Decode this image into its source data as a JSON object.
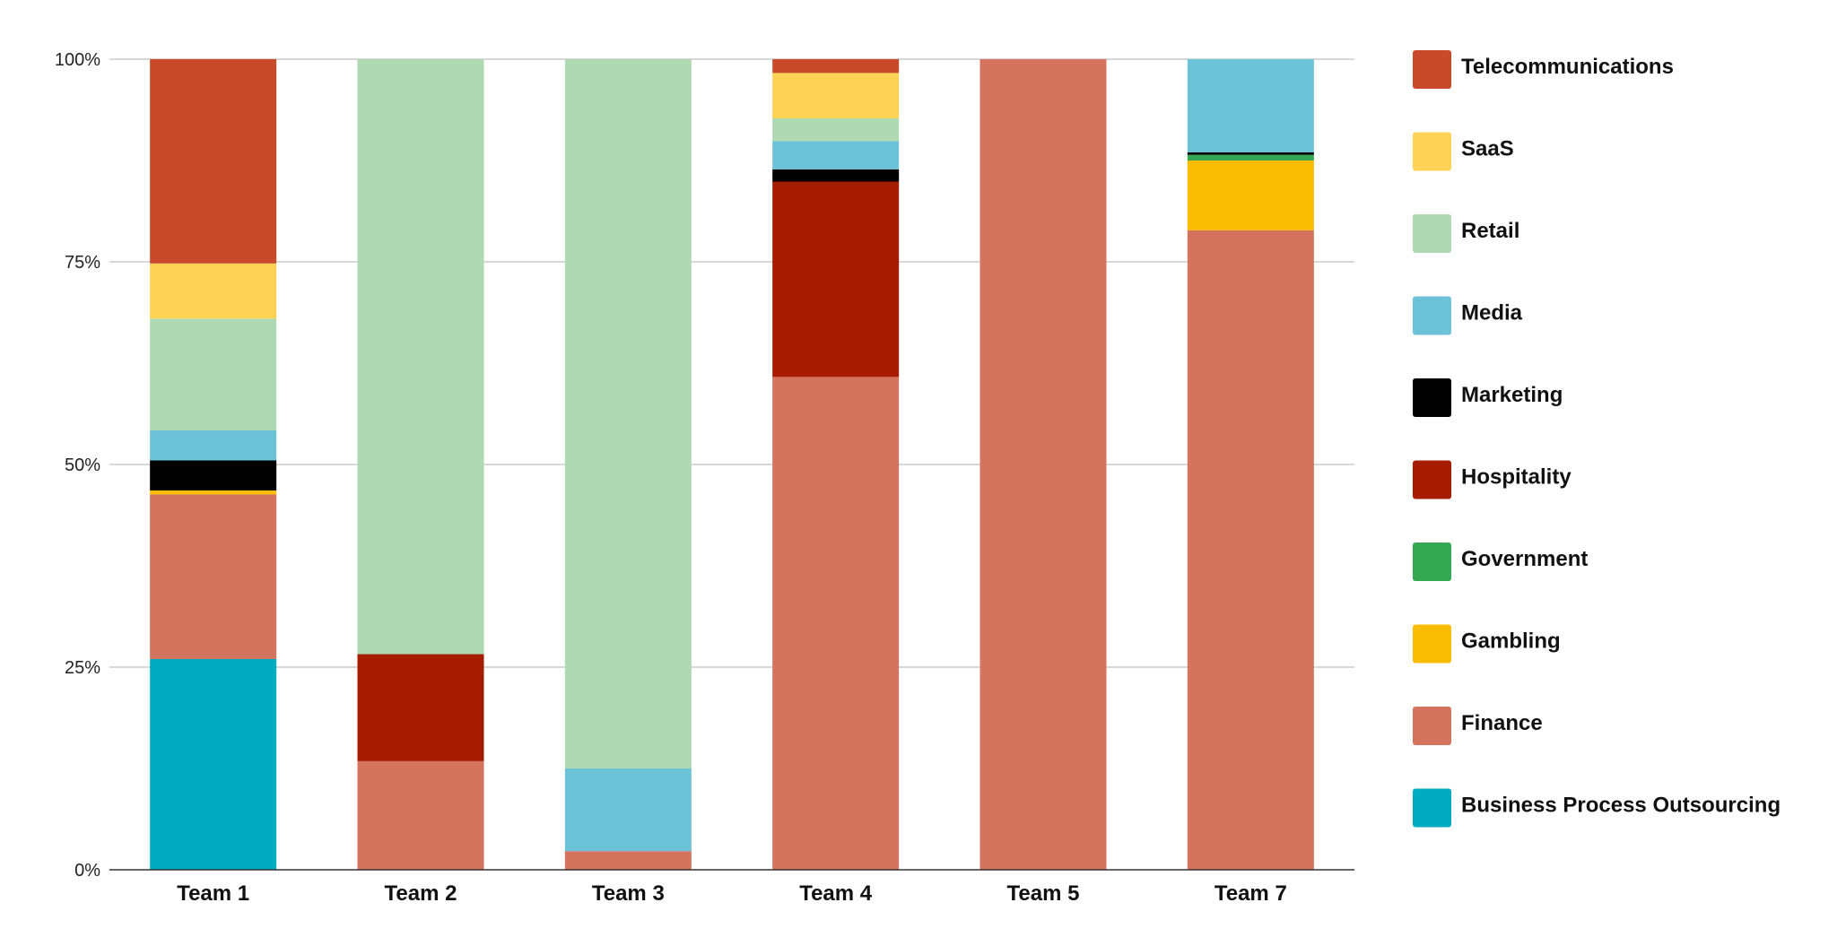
{
  "chart_data": {
    "type": "bar",
    "stacked": true,
    "normalized": true,
    "title": "",
    "xlabel": "",
    "ylabel": "",
    "ylim": [
      0,
      100
    ],
    "y_ticks": [
      "0%",
      "25%",
      "50%",
      "75%",
      "100%"
    ],
    "y_tick_values": [
      0,
      25,
      50,
      75,
      100
    ],
    "grid": true,
    "legend_position": "right",
    "categories": [
      "Team 1",
      "Team 2",
      "Team 3",
      "Team 4",
      "Team 5",
      "Team 7"
    ],
    "series": [
      {
        "name": "Business Process Outsourcing",
        "color": "#00acc1",
        "values": [
          26,
          0,
          0,
          0,
          0,
          0
        ]
      },
      {
        "name": "Finance",
        "color": "#d4745e",
        "values": [
          20.3,
          13.4,
          2.3,
          60.8,
          100,
          78.9
        ]
      },
      {
        "name": "Gambling",
        "color": "#fbbc04",
        "values": [
          0.5,
          0,
          0,
          0,
          0,
          8.6
        ]
      },
      {
        "name": "Government",
        "color": "#34a853",
        "values": [
          0,
          0,
          0,
          0,
          0,
          0.7
        ]
      },
      {
        "name": "Hospitality",
        "color": "#a61c00",
        "values": [
          0,
          13.2,
          0,
          24.1,
          0,
          0
        ]
      },
      {
        "name": "Marketing",
        "color": "#000000",
        "values": [
          3.7,
          0,
          0,
          1.5,
          0,
          0.3
        ]
      },
      {
        "name": "Media",
        "color": "#6cc2d6",
        "values": [
          3.7,
          0,
          10.2,
          3.5,
          0,
          11.5
        ]
      },
      {
        "name": "Retail",
        "color": "#aed9b2",
        "values": [
          13.8,
          73.4,
          87.5,
          2.8,
          0,
          0
        ]
      },
      {
        "name": "SaaS",
        "color": "#fdd255",
        "values": [
          6.8,
          0,
          0,
          5.6,
          0,
          0
        ]
      },
      {
        "name": "Telecommunications",
        "color": "#c94a2a",
        "values": [
          25.2,
          0,
          0,
          1.7,
          0,
          0
        ]
      }
    ]
  }
}
